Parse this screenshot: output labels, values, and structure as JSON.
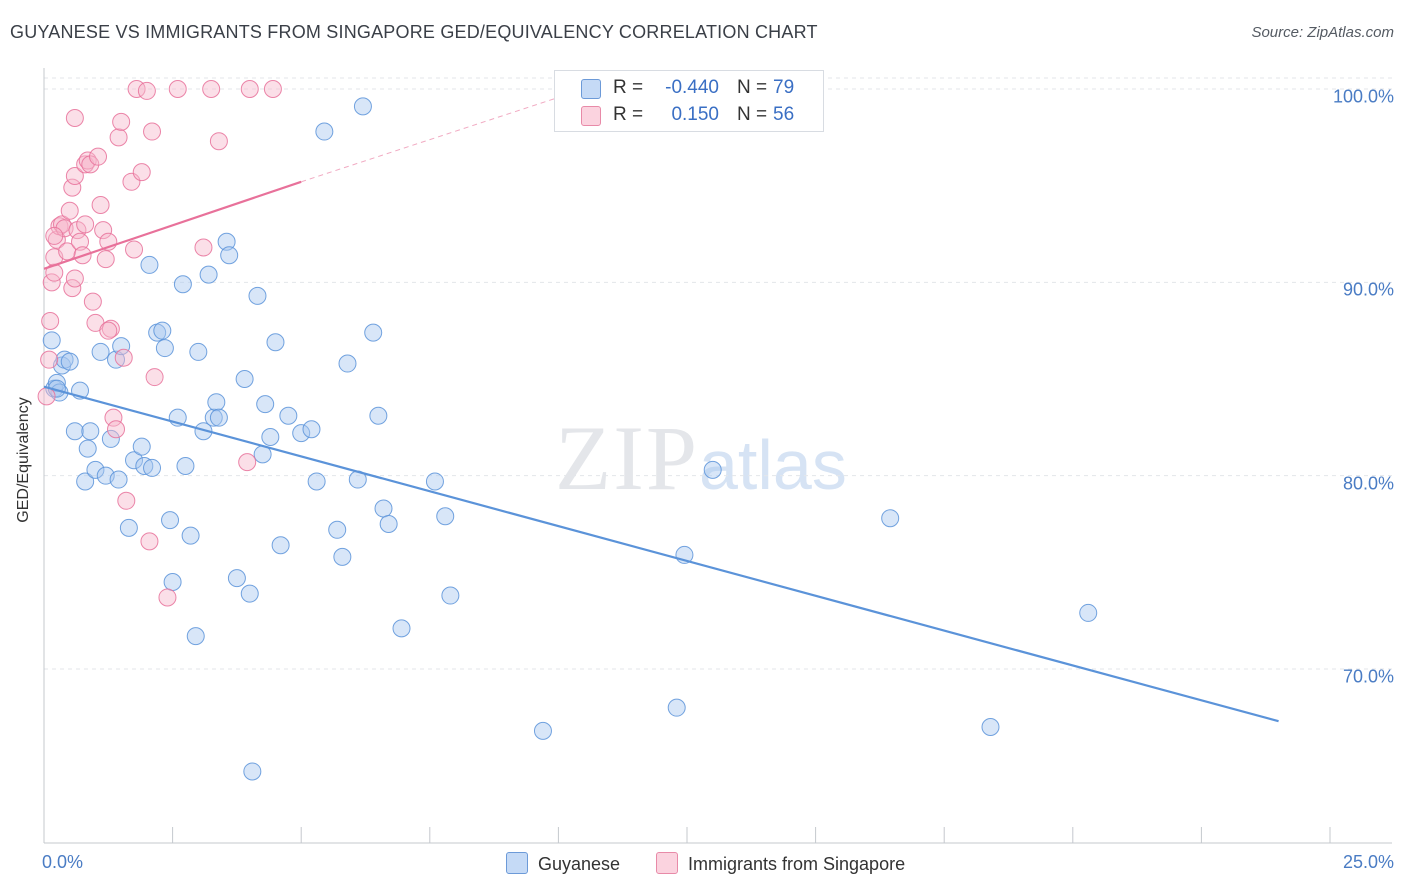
{
  "title": "GUYANESE VS IMMIGRANTS FROM SINGAPORE GED/EQUIVALENCY CORRELATION CHART",
  "source": "Source: ZipAtlas.com",
  "watermark": {
    "zip": "ZIP",
    "atlas": "atlas"
  },
  "stats": [
    {
      "r_label": "R =",
      "r_value": "-0.440",
      "n_label": "N =",
      "n_value": "79",
      "color": "#a9c8f0"
    },
    {
      "r_label": "R =",
      "r_value": "0.150",
      "n_label": "N =",
      "n_value": "56",
      "color": "#f6b8cc"
    }
  ],
  "legend": [
    {
      "label": "Guyanese",
      "color": "#a9c8f0"
    },
    {
      "label": "Immigrants from Singapore",
      "color": "#f6b8cc"
    }
  ],
  "chart_data": {
    "type": "scatter",
    "title": "GUYANESE VS IMMIGRANTS FROM SINGAPORE GED/EQUIVALENCY CORRELATION CHART",
    "xlabel": "",
    "ylabel": "GED/Equivalency",
    "xlim": [
      0,
      25
    ],
    "ylim": [
      61.0,
      101.5
    ],
    "x_tick_labels": [
      "0.0%",
      "25.0%"
    ],
    "y_ticks": [
      70,
      80,
      90,
      100
    ],
    "y_tick_labels": [
      "70.0%",
      "80.0%",
      "90.0%",
      "100.0%"
    ],
    "grid": "horizontal dashed",
    "legend_position": "bottom-center",
    "series": [
      {
        "name": "Guyanese",
        "color": "#5b93d9",
        "fill": "#a9c8f0",
        "trend": {
          "x": [
            0,
            24.0
          ],
          "y": [
            84.6,
            67.3
          ],
          "style": "solid"
        },
        "points": [
          [
            0.15,
            87.0
          ],
          [
            0.2,
            84.5
          ],
          [
            0.25,
            84.8
          ],
          [
            0.3,
            84.3
          ],
          [
            0.35,
            85.7
          ],
          [
            0.4,
            86.0
          ],
          [
            0.5,
            85.9
          ],
          [
            0.6,
            82.3
          ],
          [
            0.7,
            84.4
          ],
          [
            0.8,
            79.7
          ],
          [
            0.85,
            81.4
          ],
          [
            0.9,
            82.3
          ],
          [
            1.0,
            80.3
          ],
          [
            1.1,
            86.4
          ],
          [
            1.2,
            80.0
          ],
          [
            1.3,
            81.9
          ],
          [
            1.4,
            86.0
          ],
          [
            1.45,
            79.8
          ],
          [
            1.5,
            86.7
          ],
          [
            1.65,
            77.3
          ],
          [
            1.75,
            80.8
          ],
          [
            1.9,
            81.5
          ],
          [
            1.95,
            80.5
          ],
          [
            2.05,
            90.9
          ],
          [
            2.1,
            80.4
          ],
          [
            2.2,
            87.4
          ],
          [
            2.3,
            87.5
          ],
          [
            2.35,
            86.6
          ],
          [
            2.45,
            77.7
          ],
          [
            2.5,
            74.5
          ],
          [
            2.6,
            83.0
          ],
          [
            2.7,
            89.9
          ],
          [
            2.75,
            80.5
          ],
          [
            2.85,
            76.9
          ],
          [
            2.95,
            71.7
          ],
          [
            3.0,
            86.4
          ],
          [
            3.1,
            82.3
          ],
          [
            3.2,
            90.4
          ],
          [
            3.3,
            83.0
          ],
          [
            3.35,
            83.8
          ],
          [
            3.4,
            83.0
          ],
          [
            3.55,
            92.1
          ],
          [
            3.6,
            91.4
          ],
          [
            3.75,
            74.7
          ],
          [
            3.9,
            85.0
          ],
          [
            4.0,
            73.9
          ],
          [
            4.05,
            64.7
          ],
          [
            4.15,
            89.3
          ],
          [
            4.25,
            81.1
          ],
          [
            4.3,
            83.7
          ],
          [
            4.4,
            82.0
          ],
          [
            4.5,
            86.9
          ],
          [
            4.6,
            76.4
          ],
          [
            4.75,
            83.1
          ],
          [
            5.0,
            82.2
          ],
          [
            5.2,
            82.4
          ],
          [
            5.3,
            79.7
          ],
          [
            5.45,
            97.8
          ],
          [
            5.7,
            77.2
          ],
          [
            5.8,
            75.8
          ],
          [
            5.9,
            85.8
          ],
          [
            6.1,
            79.8
          ],
          [
            6.2,
            99.1
          ],
          [
            6.4,
            87.4
          ],
          [
            6.5,
            83.1
          ],
          [
            6.6,
            78.3
          ],
          [
            6.7,
            77.5
          ],
          [
            6.95,
            72.1
          ],
          [
            7.6,
            79.7
          ],
          [
            7.8,
            77.9
          ],
          [
            7.9,
            73.8
          ],
          [
            9.7,
            66.8
          ],
          [
            12.3,
            68.0
          ],
          [
            12.45,
            75.9
          ],
          [
            13.0,
            80.3
          ],
          [
            16.45,
            77.8
          ],
          [
            18.4,
            67.0
          ],
          [
            20.3,
            72.9
          ],
          [
            0.25,
            84.5
          ]
        ]
      },
      {
        "name": "Immigrants from Singapore",
        "color": "#e8719a",
        "fill": "#f6b8cc",
        "trend": {
          "x": [
            0,
            5.0
          ],
          "y": [
            90.7,
            95.2
          ],
          "style": "solid",
          "extended_to": [
            10.5,
            100.0
          ]
        },
        "points": [
          [
            0.05,
            84.1
          ],
          [
            0.1,
            86.0
          ],
          [
            0.12,
            88.0
          ],
          [
            0.15,
            90.0
          ],
          [
            0.2,
            90.5
          ],
          [
            0.2,
            91.3
          ],
          [
            0.25,
            92.2
          ],
          [
            0.3,
            92.9
          ],
          [
            0.35,
            93.0
          ],
          [
            0.4,
            92.8
          ],
          [
            0.45,
            91.6
          ],
          [
            0.5,
            93.7
          ],
          [
            0.55,
            94.9
          ],
          [
            0.6,
            95.5
          ],
          [
            0.55,
            89.7
          ],
          [
            0.6,
            90.2
          ],
          [
            0.65,
            92.7
          ],
          [
            0.7,
            92.1
          ],
          [
            0.75,
            91.4
          ],
          [
            0.8,
            93.0
          ],
          [
            0.8,
            96.1
          ],
          [
            0.85,
            96.3
          ],
          [
            0.6,
            98.5
          ],
          [
            0.9,
            96.1
          ],
          [
            0.95,
            89.0
          ],
          [
            1.0,
            87.9
          ],
          [
            1.05,
            96.5
          ],
          [
            1.1,
            94.0
          ],
          [
            1.15,
            92.7
          ],
          [
            1.2,
            91.2
          ],
          [
            1.25,
            92.1
          ],
          [
            1.3,
            87.6
          ],
          [
            1.35,
            83.0
          ],
          [
            1.4,
            82.4
          ],
          [
            1.45,
            97.5
          ],
          [
            1.5,
            98.3
          ],
          [
            1.55,
            86.1
          ],
          [
            1.6,
            78.7
          ],
          [
            1.75,
            91.7
          ],
          [
            1.7,
            95.2
          ],
          [
            1.8,
            100.0
          ],
          [
            1.9,
            95.7
          ],
          [
            2.0,
            99.9
          ],
          [
            2.1,
            97.8
          ],
          [
            2.15,
            85.1
          ],
          [
            2.05,
            76.6
          ],
          [
            2.4,
            73.7
          ],
          [
            2.6,
            100.0
          ],
          [
            3.1,
            91.8
          ],
          [
            3.25,
            100.0
          ],
          [
            3.4,
            97.3
          ],
          [
            3.95,
            80.7
          ],
          [
            4.0,
            100.0
          ],
          [
            4.45,
            100.0
          ],
          [
            0.2,
            92.4
          ],
          [
            1.25,
            87.5
          ]
        ]
      }
    ]
  }
}
